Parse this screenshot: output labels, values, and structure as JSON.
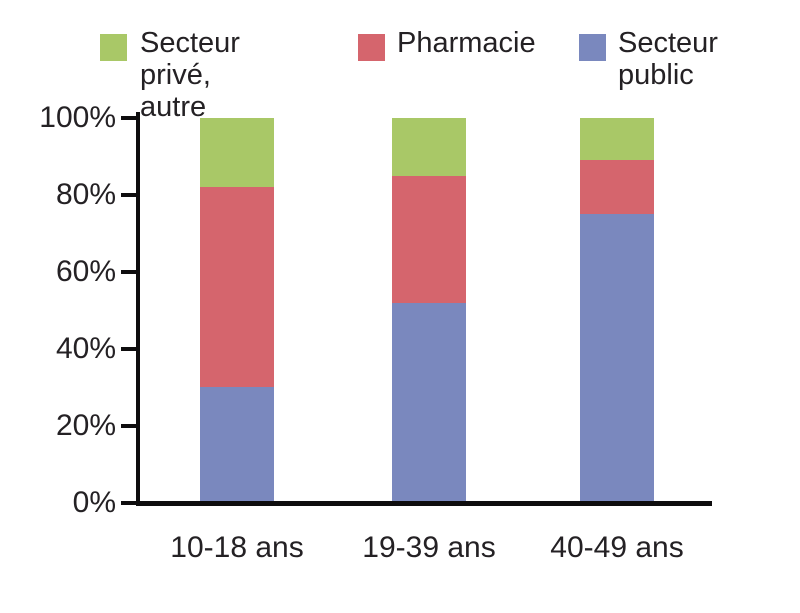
{
  "chart_data": {
    "type": "bar",
    "stacked": true,
    "percent_stacked": true,
    "title": "",
    "xlabel": "",
    "ylabel": "",
    "categories": [
      "10-18 ans",
      "19-39 ans",
      "40-49 ans"
    ],
    "series": [
      {
        "name": "Secteur privé, autre",
        "color": "#a9c867",
        "values": [
          18,
          15,
          11
        ]
      },
      {
        "name": "Pharmacie",
        "color": "#d5656d",
        "values": [
          52,
          33,
          14
        ]
      },
      {
        "name": "Secteur public",
        "color": "#7a88be",
        "values": [
          30,
          52,
          75
        ]
      }
    ],
    "stack_order_top_to_bottom": [
      "Secteur privé, autre",
      "Pharmacie",
      "Secteur public"
    ],
    "ylim": [
      0,
      100
    ],
    "y_ticks": [
      0,
      20,
      40,
      60,
      80,
      100
    ],
    "y_tick_suffix": "%",
    "grid": false,
    "legend_position": "top"
  },
  "legend": {
    "items": [
      {
        "label": "Secteur privé,\nautre"
      },
      {
        "label": "Pharmacie"
      },
      {
        "label": "Secteur\npublic"
      }
    ]
  },
  "colors": {
    "axis": "#0e0d0e",
    "text": "#242124",
    "background": "#ffffff",
    "green": "#a9c867",
    "red": "#d5656d",
    "blue": "#7a88be"
  }
}
